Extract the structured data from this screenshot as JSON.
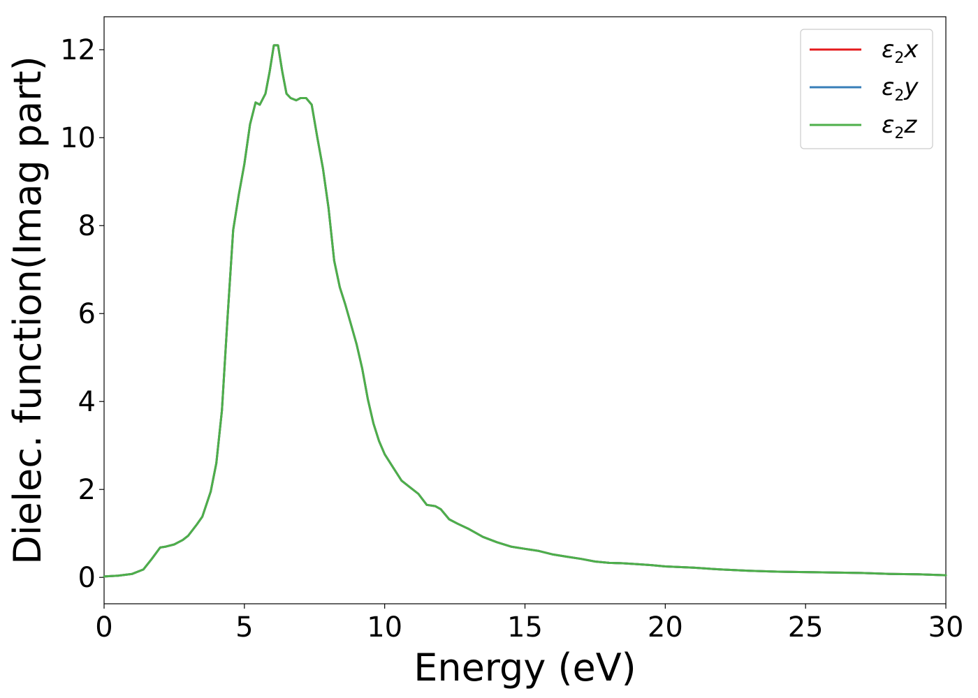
{
  "chart_data": {
    "type": "line",
    "xlabel": "Energy (eV)",
    "ylabel": "Dielec. function(Imag part)",
    "xlim": [
      0,
      30
    ],
    "ylim": [
      -0.6,
      12.75
    ],
    "x_ticks": [
      0,
      5,
      10,
      15,
      20,
      25,
      30
    ],
    "y_ticks": [
      0,
      2,
      4,
      6,
      8,
      10,
      12
    ],
    "grid": false,
    "legend_position": "top-right",
    "series": [
      {
        "name": "ε2x",
        "base": "ε",
        "sub": "2",
        "var": "x",
        "color": "#e41a1c"
      },
      {
        "name": "ε2y",
        "base": "ε",
        "sub": "2",
        "var": "y",
        "color": "#377eb8"
      },
      {
        "name": "ε2z",
        "base": "ε",
        "sub": "2",
        "var": "z",
        "color": "#4daf4a"
      }
    ],
    "x": [
      0,
      0.5,
      1.0,
      1.4,
      1.7,
      2.0,
      2.2,
      2.5,
      2.8,
      3.0,
      3.3,
      3.5,
      3.8,
      4.0,
      4.2,
      4.4,
      4.6,
      4.8,
      5.0,
      5.2,
      5.4,
      5.55,
      5.75,
      5.9,
      6.05,
      6.2,
      6.35,
      6.5,
      6.65,
      6.85,
      7.0,
      7.2,
      7.4,
      7.6,
      7.8,
      8.0,
      8.2,
      8.4,
      8.6,
      8.8,
      9.0,
      9.2,
      9.4,
      9.6,
      9.8,
      10.0,
      10.3,
      10.6,
      10.9,
      11.2,
      11.5,
      11.8,
      12.0,
      12.3,
      12.6,
      13.0,
      13.5,
      14.0,
      14.5,
      15.0,
      15.5,
      16.0,
      16.5,
      17.0,
      17.5,
      18.0,
      18.5,
      19.0,
      19.5,
      20.0,
      21.0,
      22.0,
      23.0,
      24.0,
      25.0,
      26.0,
      27.0,
      28.0,
      29.0,
      30.0
    ],
    "y": [
      0.02,
      0.04,
      0.08,
      0.18,
      0.42,
      0.68,
      0.7,
      0.75,
      0.85,
      0.95,
      1.2,
      1.38,
      1.95,
      2.6,
      3.8,
      5.9,
      7.9,
      8.7,
      9.4,
      10.3,
      10.8,
      10.75,
      11.0,
      11.5,
      12.1,
      12.1,
      11.5,
      11.0,
      10.9,
      10.85,
      10.9,
      10.9,
      10.75,
      10.0,
      9.3,
      8.4,
      7.2,
      6.6,
      6.2,
      5.75,
      5.3,
      4.75,
      4.05,
      3.5,
      3.1,
      2.8,
      2.5,
      2.2,
      2.05,
      1.9,
      1.65,
      1.62,
      1.55,
      1.32,
      1.22,
      1.1,
      0.92,
      0.8,
      0.7,
      0.65,
      0.6,
      0.52,
      0.47,
      0.42,
      0.36,
      0.33,
      0.32,
      0.3,
      0.28,
      0.25,
      0.22,
      0.18,
      0.15,
      0.13,
      0.12,
      0.11,
      0.1,
      0.08,
      0.07,
      0.05
    ]
  }
}
